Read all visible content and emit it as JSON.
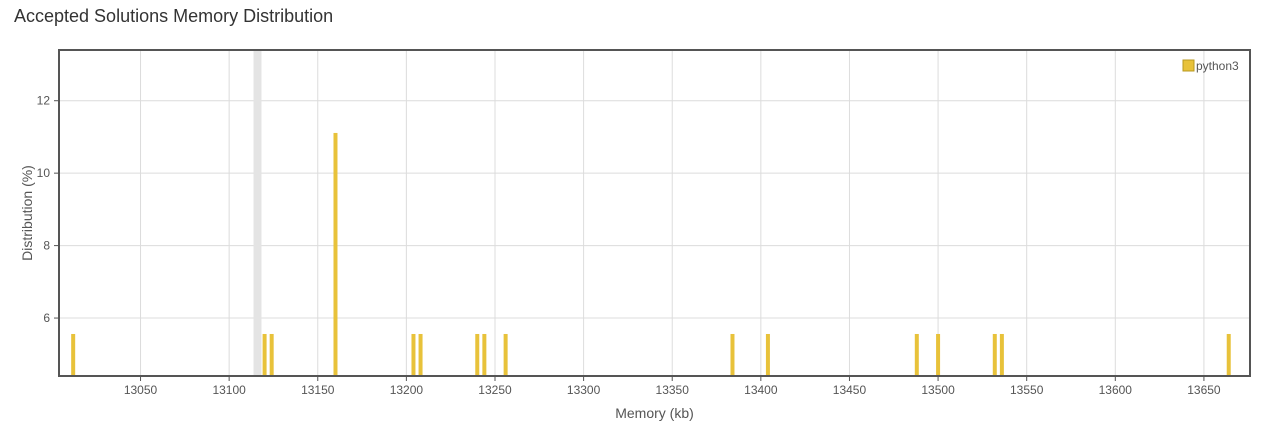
{
  "chart_data": {
    "type": "bar",
    "title": "Accepted Solutions Memory Distribution",
    "xlabel": "Memory (kb)",
    "ylabel": "Distribution (%)",
    "xlim": [
      13004,
      13676
    ],
    "ylim": [
      4.4,
      13.4
    ],
    "xticks": [
      13050,
      13100,
      13150,
      13200,
      13250,
      13300,
      13350,
      13400,
      13450,
      13500,
      13550,
      13600,
      13650
    ],
    "yticks": [
      6,
      8,
      10,
      12
    ],
    "grid": true,
    "legend_position": "top-right",
    "highlight_x": 13116,
    "series": [
      {
        "name": "python3",
        "color": "#e8c23a",
        "x": [
          13012,
          13120,
          13124,
          13160,
          13204,
          13208,
          13240,
          13244,
          13256,
          13384,
          13404,
          13488,
          13500,
          13532,
          13536,
          13664
        ],
        "values": [
          5.56,
          5.56,
          5.56,
          11.11,
          5.56,
          5.56,
          5.56,
          5.56,
          5.56,
          5.56,
          5.56,
          5.56,
          5.56,
          5.56,
          5.56,
          5.56
        ]
      }
    ]
  }
}
